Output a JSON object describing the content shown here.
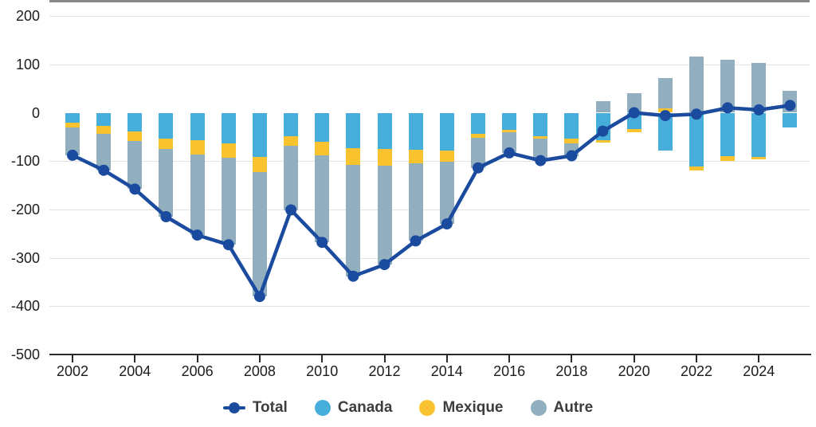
{
  "chart_data": {
    "type": "bar",
    "subtype": "stacked-bar-with-line",
    "title": "",
    "xlabel": "",
    "ylabel": "",
    "x": [
      2002,
      2003,
      2004,
      2005,
      2006,
      2007,
      2008,
      2009,
      2010,
      2011,
      2012,
      2013,
      2014,
      2015,
      2016,
      2017,
      2018,
      2019,
      2020,
      2021,
      2022,
      2023,
      2024,
      2025
    ],
    "series": [
      {
        "name": "Canada",
        "type": "bar",
        "color": "#47aedc",
        "values": [
          -20,
          -27,
          -38,
          -54,
          -57,
          -64,
          -92,
          -48,
          -60,
          -74,
          -75,
          -77,
          -78,
          -43,
          -36,
          -48,
          -54,
          -57,
          -34,
          -78,
          -111,
          -90,
          -92,
          -31
        ]
      },
      {
        "name": "Mexique",
        "type": "bar",
        "color": "#f8c32e",
        "values": [
          -11,
          -16,
          -20,
          -21,
          -29,
          -29,
          -31,
          -21,
          -28,
          -34,
          -35,
          -28,
          -23,
          -9,
          -5,
          -6,
          -10,
          -5,
          -7,
          9,
          -8,
          -9,
          -5,
          0
        ]
      },
      {
        "name": "Autre",
        "type": "bar",
        "color": "#92afc0",
        "values": [
          -57,
          -76,
          -100,
          -140,
          -167,
          -180,
          -257,
          -132,
          -180,
          -230,
          -204,
          -160,
          -129,
          -62,
          -42,
          -45,
          -25,
          24,
          41,
          63,
          116,
          109,
          103,
          46
        ]
      },
      {
        "name": "Total",
        "type": "line",
        "color": "#1a4b9e",
        "values": [
          -88,
          -119,
          -158,
          -215,
          -253,
          -273,
          -380,
          -201,
          -268,
          -338,
          -314,
          -265,
          -230,
          -114,
          -83,
          -99,
          -89,
          -38,
          0,
          -6,
          -3,
          10,
          6,
          15
        ]
      }
    ],
    "ylim": [
      -500,
      200
    ],
    "yticks": [
      200,
      100,
      0,
      -100,
      -200,
      -300,
      -400,
      -500
    ],
    "xticks": [
      2002,
      2004,
      2006,
      2008,
      2010,
      2012,
      2014,
      2016,
      2018,
      2020,
      2022,
      2024
    ],
    "grid": true,
    "zero_line_color": "#8a8a8a",
    "grid_color": "#e3e3e3",
    "axis_color": "#2b2b2b",
    "legend_position": "bottom",
    "legend": [
      {
        "label": "Total",
        "marker": "line-dot",
        "color": "#1a4b9e"
      },
      {
        "label": "Canada",
        "marker": "circle",
        "color": "#47aedc"
      },
      {
        "label": "Mexique",
        "marker": "circle",
        "color": "#f8c32e"
      },
      {
        "label": "Autre",
        "marker": "circle",
        "color": "#92afc0"
      }
    ]
  }
}
